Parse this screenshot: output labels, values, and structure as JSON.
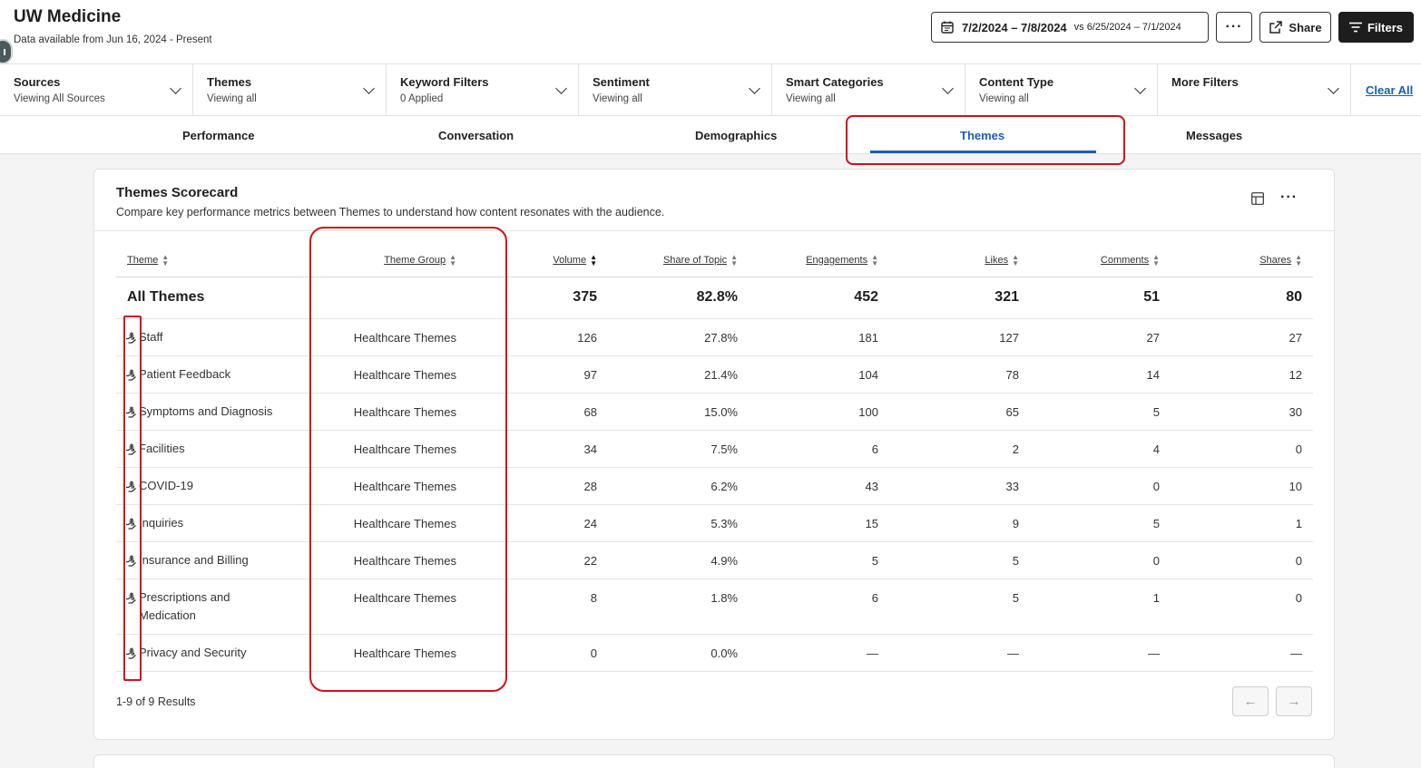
{
  "app": {
    "title": "UW Medicine",
    "subtitle": "Data available from Jun 16, 2024 - Present"
  },
  "header": {
    "date_range": "7/2/2024 – 7/8/2024",
    "compare_label": "vs 6/25/2024 – 7/1/2024",
    "more_label": "···",
    "share_label": "Share",
    "filters_label": "Filters"
  },
  "filters": [
    {
      "label": "Sources",
      "value": "Viewing All Sources"
    },
    {
      "label": "Themes",
      "value": "Viewing all"
    },
    {
      "label": "Keyword Filters",
      "value": "0 Applied"
    },
    {
      "label": "Sentiment",
      "value": "Viewing all"
    },
    {
      "label": "Smart Categories",
      "value": "Viewing all"
    },
    {
      "label": "Content Type",
      "value": "Viewing all"
    },
    {
      "label": "More Filters",
      "value": ""
    }
  ],
  "clear_all": "Clear All",
  "tabs": [
    {
      "label": "Performance",
      "active": false
    },
    {
      "label": "Conversation",
      "active": false
    },
    {
      "label": "Demographics",
      "active": false
    },
    {
      "label": "Themes",
      "active": true
    },
    {
      "label": "Messages",
      "active": false
    }
  ],
  "scorecard": {
    "title": "Themes Scorecard",
    "description": "Compare key performance metrics between Themes to understand how content resonates with the audience.",
    "kebab": "···",
    "columns": [
      "Theme",
      "Theme Group",
      "Volume",
      "Share of Topic",
      "Engagements",
      "Likes",
      "Comments",
      "Shares"
    ],
    "total": {
      "name": "All Themes",
      "group": "",
      "volume": "375",
      "share": "82.8%",
      "engagements": "452",
      "likes": "321",
      "comments": "51",
      "shares": "80"
    },
    "rows": [
      {
        "name": "Staff",
        "group": "Healthcare Themes",
        "volume": "126",
        "share": "27.8%",
        "engagements": "181",
        "likes": "127",
        "comments": "27",
        "shares": "27"
      },
      {
        "name": "Patient Feedback",
        "group": "Healthcare Themes",
        "volume": "97",
        "share": "21.4%",
        "engagements": "104",
        "likes": "78",
        "comments": "14",
        "shares": "12"
      },
      {
        "name": "Symptoms and Diagnosis",
        "group": "Healthcare Themes",
        "volume": "68",
        "share": "15.0%",
        "engagements": "100",
        "likes": "65",
        "comments": "5",
        "shares": "30"
      },
      {
        "name": "Facilities",
        "group": "Healthcare Themes",
        "volume": "34",
        "share": "7.5%",
        "engagements": "6",
        "likes": "2",
        "comments": "4",
        "shares": "0"
      },
      {
        "name": "COVID-19",
        "group": "Healthcare Themes",
        "volume": "28",
        "share": "6.2%",
        "engagements": "43",
        "likes": "33",
        "comments": "0",
        "shares": "10"
      },
      {
        "name": "Inquiries",
        "group": "Healthcare Themes",
        "volume": "24",
        "share": "5.3%",
        "engagements": "15",
        "likes": "9",
        "comments": "5",
        "shares": "1"
      },
      {
        "name": "Insurance and Billing",
        "group": "Healthcare Themes",
        "volume": "22",
        "share": "4.9%",
        "engagements": "5",
        "likes": "5",
        "comments": "0",
        "shares": "0"
      },
      {
        "name": "Prescriptions and Medication",
        "group": "Healthcare Themes",
        "volume": "8",
        "share": "1.8%",
        "engagements": "6",
        "likes": "5",
        "comments": "1",
        "shares": "0"
      },
      {
        "name": "Privacy and Security",
        "group": "Healthcare Themes",
        "volume": "0",
        "share": "0.0%",
        "engagements": "—",
        "likes": "—",
        "comments": "—",
        "shares": "—"
      }
    ],
    "results": "1-9 of 9 Results",
    "prev": "←",
    "next": "→"
  },
  "colors": {
    "accent": "#1a5fb4",
    "annotation": "#d0101a",
    "dark_button": "#1d1d1d"
  }
}
